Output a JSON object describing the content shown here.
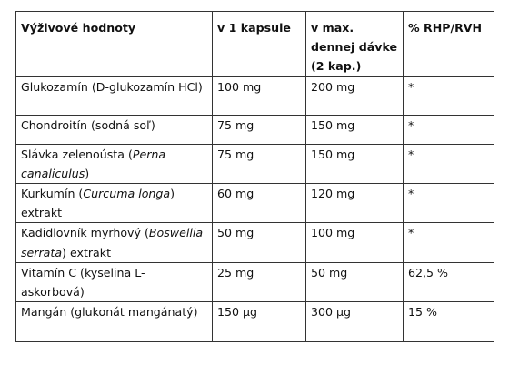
{
  "table": {
    "headers": {
      "name": "Výživové hodnoty",
      "per_capsule": "v 1 kapsule",
      "max_dose": "v max. dennej dávke (2 kap.)",
      "rhp": "% RHP/RVH"
    },
    "rows": [
      {
        "name_pre": "Glukozamín (D-glukozamín HCl)",
        "name_italic": "",
        "name_post": "",
        "per_capsule": "100 mg",
        "max_dose": "200 mg",
        "rhp": "*"
      },
      {
        "name_pre": "Chondroitín (sodná soľ)",
        "name_italic": "",
        "name_post": "",
        "per_capsule": "75 mg",
        "max_dose": "150 mg",
        "rhp": "*"
      },
      {
        "name_pre": "Slávka zelenoústa (",
        "name_italic": "Perna canaliculus",
        "name_post": ")",
        "per_capsule": "75 mg",
        "max_dose": "150 mg",
        "rhp": "*"
      },
      {
        "name_pre": "Kurkumín (",
        "name_italic": "Curcuma longa",
        "name_post": ") extrakt",
        "per_capsule": "60 mg",
        "max_dose": "120 mg",
        "rhp": "*"
      },
      {
        "name_pre": "Kadidlovník myrhový (",
        "name_italic": "Boswellia serrata",
        "name_post": ") extrakt",
        "per_capsule": "50 mg",
        "max_dose": "100 mg",
        "rhp": "*"
      },
      {
        "name_pre": "Vitamín C (kyselina L-askorbová)",
        "name_italic": "",
        "name_post": "",
        "per_capsule": "25 mg",
        "max_dose": "50 mg",
        "rhp": "62,5 %"
      },
      {
        "name_pre": "Mangán (glukonát mangánatý)",
        "name_italic": "",
        "name_post": "",
        "per_capsule": "150 µg",
        "max_dose": "300 µg",
        "rhp": "15 %"
      }
    ]
  }
}
